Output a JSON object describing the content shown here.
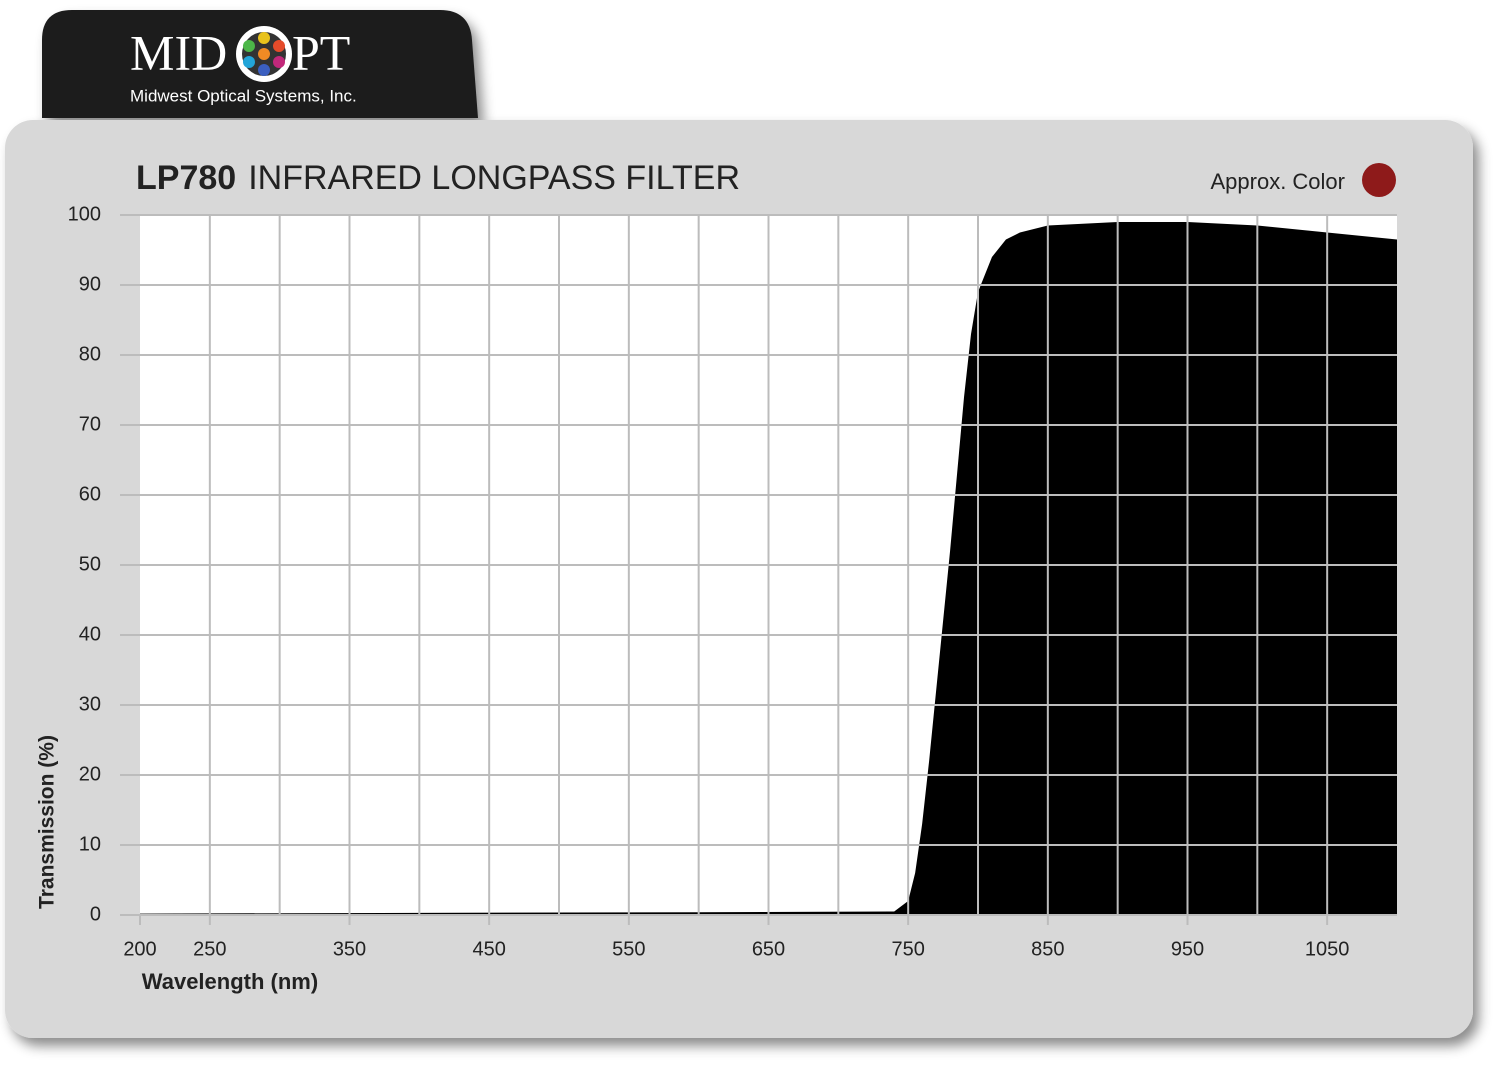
{
  "header": {
    "logo_left": "MID",
    "logo_right": "PT",
    "logo_subtitle": "Midwest Optical Systems, Inc."
  },
  "chart_data": {
    "type": "area",
    "model": "LP780",
    "title": "INFRARED LONGPASS FILTER",
    "approx_color_label": "Approx. Color",
    "approx_color": "#8e1a1a",
    "x_label": "Wavelength (nm)",
    "y_label": "Transmission (%)",
    "x": [
      200,
      400,
      600,
      740,
      750,
      755,
      760,
      765,
      770,
      775,
      780,
      785,
      790,
      795,
      800,
      810,
      820,
      830,
      850,
      900,
      950,
      1000,
      1050,
      1100
    ],
    "series": [
      {
        "name": "LP780",
        "color": "#000000",
        "values": [
          0.2,
          0.3,
          0.4,
          0.5,
          2,
          6,
          13,
          22,
          32,
          42,
          52,
          63,
          74,
          83,
          89,
          94,
          96.5,
          97.5,
          98.5,
          99,
          99,
          98.5,
          97.5,
          96.5
        ]
      }
    ],
    "xlim": [
      200,
      1100
    ],
    "ylim": [
      0,
      100
    ],
    "xticks": [
      200,
      250,
      350,
      450,
      550,
      650,
      750,
      850,
      950,
      1050
    ],
    "xgrid": [
      250,
      300,
      350,
      400,
      450,
      500,
      550,
      600,
      650,
      700,
      750,
      800,
      850,
      900,
      950,
      1000,
      1050
    ],
    "yticks": [
      0,
      10,
      20,
      30,
      40,
      50,
      60,
      70,
      80,
      90,
      100
    ],
    "grid": true
  }
}
